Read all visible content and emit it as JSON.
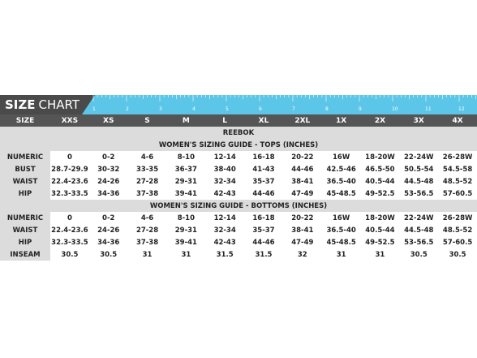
{
  "header": {
    "title_bold": "SIZE",
    "title_light": "CHART",
    "ruler": [
      "1",
      "2",
      "3",
      "4",
      "5",
      "6",
      "7",
      "8",
      "9",
      "10",
      "11",
      "12"
    ]
  },
  "table": {
    "columns": [
      "SIZE",
      "XXS",
      "XS",
      "S",
      "M",
      "L",
      "XL",
      "2XL",
      "1X",
      "2X",
      "3X",
      "4X"
    ],
    "brand": "REEBOK",
    "sections": [
      {
        "title": "WOMEN'S SIZING GUIDE - TOPS (INCHES)",
        "rows": [
          {
            "label": "NUMERIC",
            "cells": [
              "0",
              "0-2",
              "4-6",
              "8-10",
              "12-14",
              "16-18",
              "20-22",
              "16W",
              "18-20W",
              "22-24W",
              "26-28W"
            ]
          },
          {
            "label": "BUST",
            "cells": [
              "28.7-29.9",
              "30-32",
              "33-35",
              "36-37",
              "38-40",
              "41-43",
              "44-46",
              "42.5-46",
              "46.5-50",
              "50.5-54",
              "54.5-58"
            ]
          },
          {
            "label": "WAIST",
            "cells": [
              "22.4-23.6",
              "24-26",
              "27-28",
              "29-31",
              "32-34",
              "35-37",
              "38-41",
              "36.5-40",
              "40.5-44",
              "44.5-48",
              "48.5-52"
            ]
          },
          {
            "label": "HIP",
            "cells": [
              "32.3-33.5",
              "34-36",
              "37-38",
              "39-41",
              "42-43",
              "44-46",
              "47-49",
              "45-48.5",
              "49-52.5",
              "53-56.5",
              "57-60.5"
            ]
          }
        ]
      },
      {
        "title": "WOMEN'S SIZING GUIDE - BOTTOMS (INCHES)",
        "rows": [
          {
            "label": "NUMERIC",
            "cells": [
              "0",
              "0-2",
              "4-6",
              "8-10",
              "12-14",
              "16-18",
              "20-22",
              "16W",
              "18-20W",
              "22-24W",
              "26-28W"
            ]
          },
          {
            "label": "WAIST",
            "cells": [
              "22.4-23.6",
              "24-26",
              "27-28",
              "29-31",
              "32-34",
              "35-37",
              "38-41",
              "36.5-40",
              "40.5-44",
              "44.5-48",
              "48.5-52"
            ]
          },
          {
            "label": "HIP",
            "cells": [
              "32.3-33.5",
              "34-36",
              "37-38",
              "39-41",
              "42-43",
              "44-46",
              "47-49",
              "45-48.5",
              "49-52.5",
              "53-56.5",
              "57-60.5"
            ]
          },
          {
            "label": "INSEAM",
            "cells": [
              "30.5",
              "30.5",
              "31",
              "31",
              "31.5",
              "31.5",
              "32",
              "31",
              "31",
              "30.5",
              "30.5"
            ]
          }
        ]
      }
    ]
  }
}
